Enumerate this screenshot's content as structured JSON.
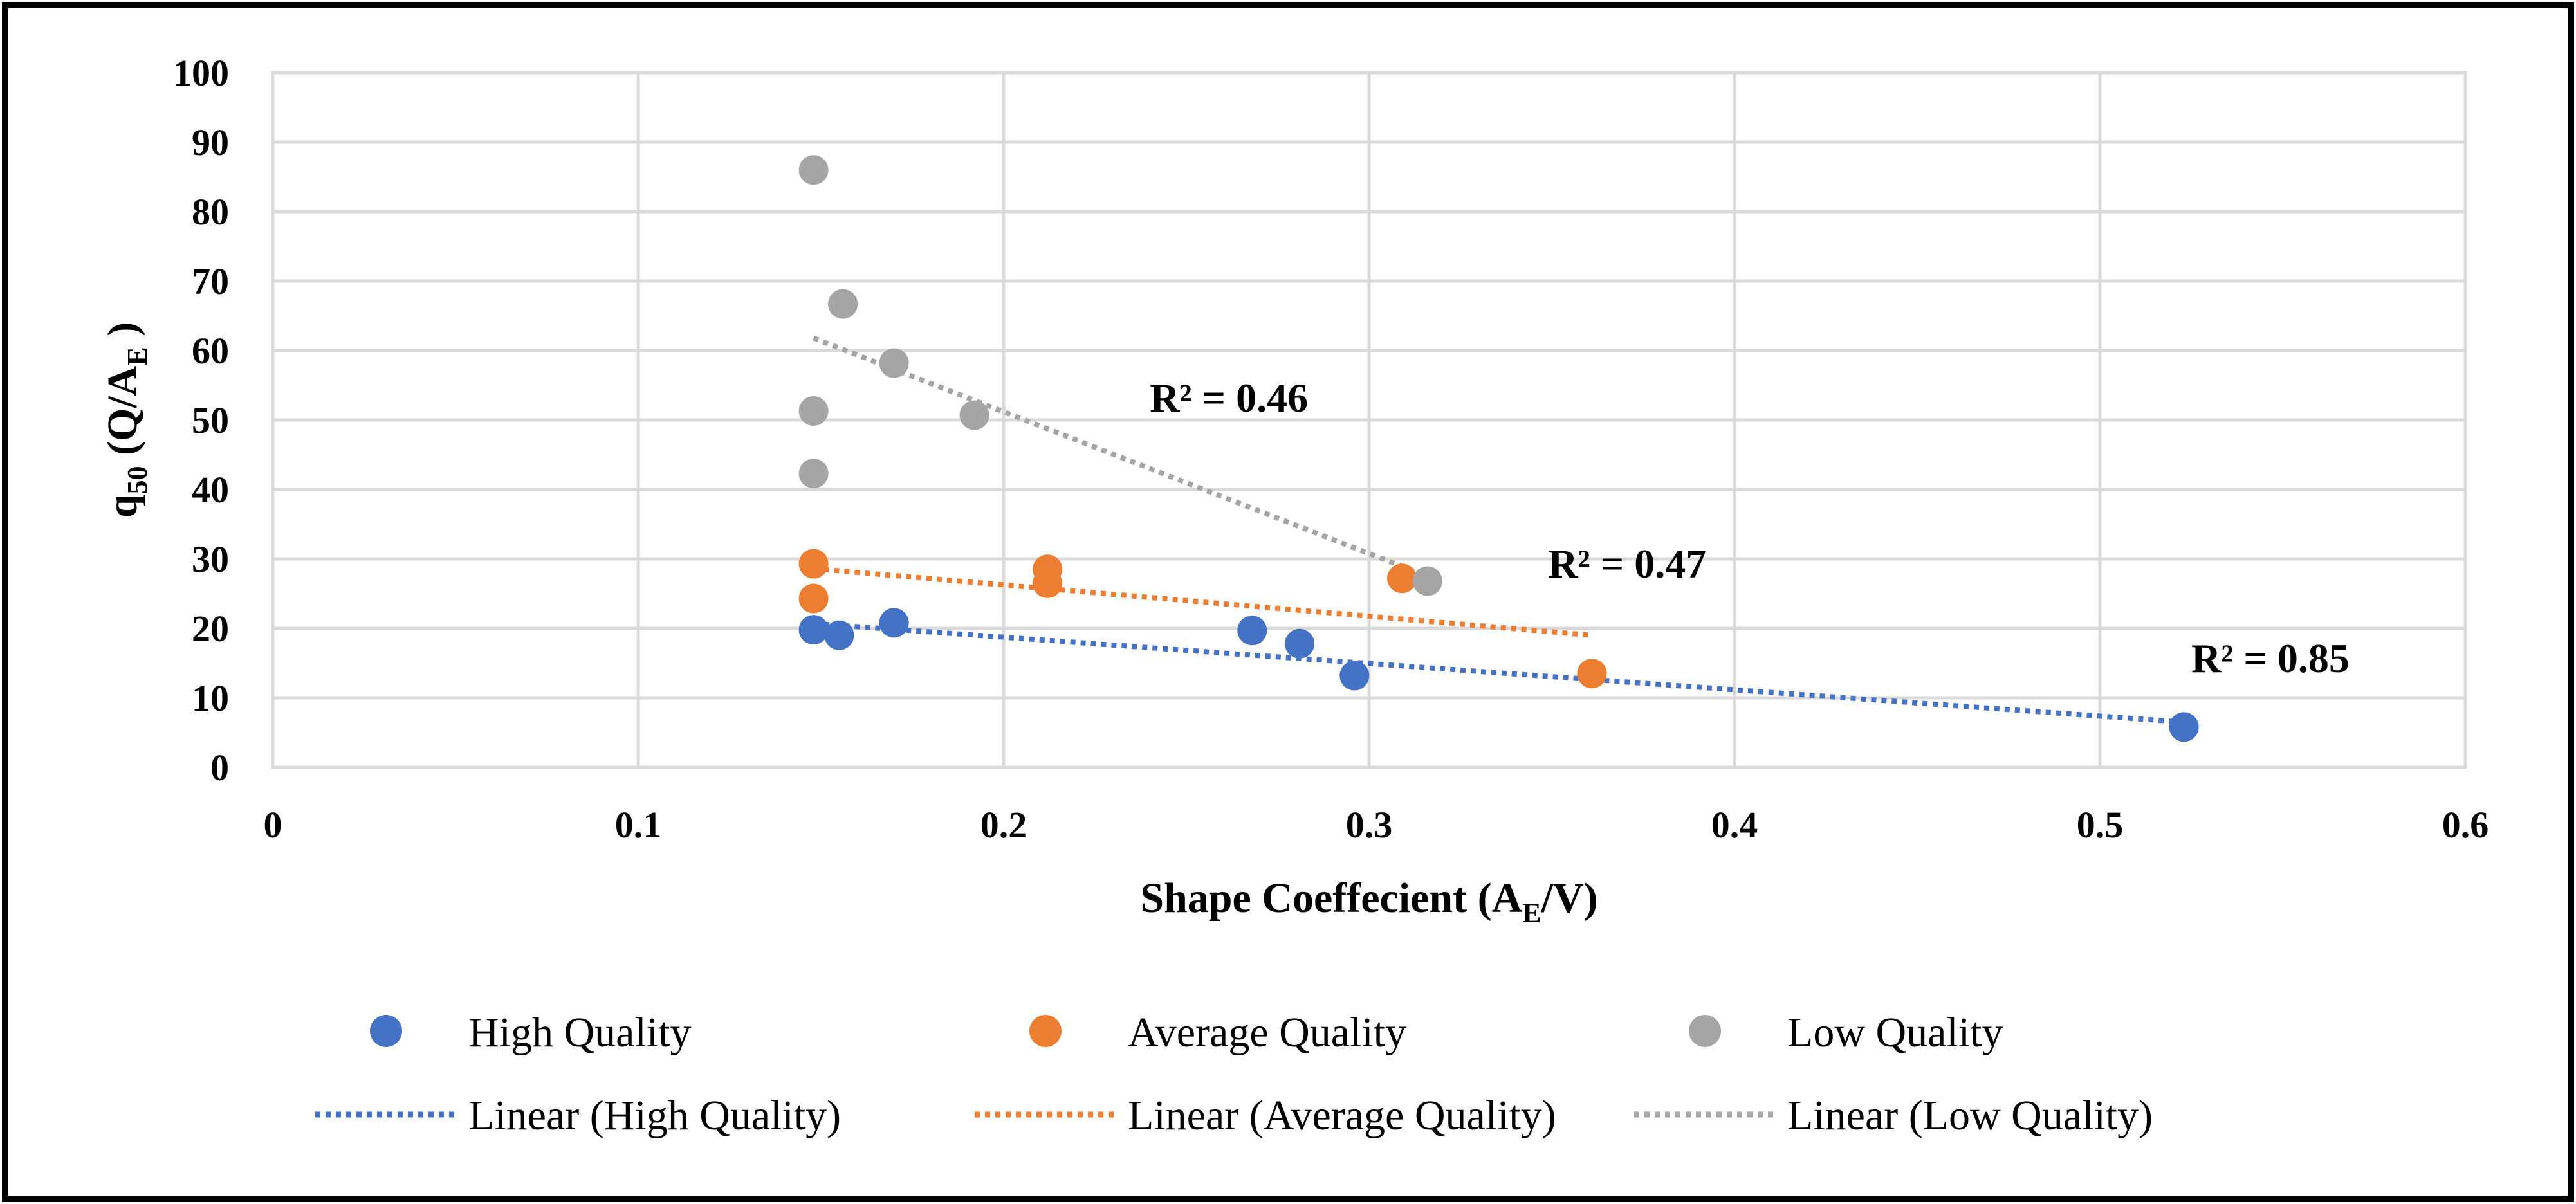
{
  "chart_data": {
    "type": "scatter",
    "xlabel": {
      "main": "Shape Coeffecient (A",
      "sub": "E",
      "tail": "/V)"
    },
    "ylabel": {
      "main": "q",
      "sub1": "50",
      "mid": " (Q/A",
      "sub2": "E",
      "tail": " )"
    },
    "xlim": [
      0,
      0.6
    ],
    "ylim": [
      0,
      100
    ],
    "x_ticks": [
      0,
      0.1,
      0.2,
      0.3,
      0.4,
      0.5,
      0.6
    ],
    "x_tick_labels": [
      "0",
      "0.1",
      "0.2",
      "0.3",
      "0.4",
      "0.5",
      "0.6"
    ],
    "y_ticks": [
      0,
      10,
      20,
      30,
      40,
      50,
      60,
      70,
      80,
      90,
      100
    ],
    "y_tick_labels": [
      "0",
      "10",
      "20",
      "30",
      "40",
      "50",
      "60",
      "70",
      "80",
      "90",
      "100"
    ],
    "grid": true,
    "legend_position": "bottom",
    "series": [
      {
        "name": "High Quality",
        "color": "#4472C4",
        "points": [
          [
            0.148,
            19.8
          ],
          [
            0.155,
            19.0
          ],
          [
            0.17,
            20.8
          ],
          [
            0.268,
            19.7
          ],
          [
            0.281,
            17.8
          ],
          [
            0.296,
            13.2
          ],
          [
            0.523,
            5.8
          ]
        ],
        "trend_name": "Linear (High Quality)",
        "trend": {
          "x": [
            0.148,
            0.523
          ],
          "y": [
            20.7,
            6.5
          ]
        },
        "r2_label": "R² = 0.85",
        "r2_at": [
          0.525,
          13.7
        ]
      },
      {
        "name": "Average Quality",
        "color": "#ED7D31",
        "points": [
          [
            0.148,
            29.3
          ],
          [
            0.148,
            24.3
          ],
          [
            0.212,
            28.5
          ],
          [
            0.212,
            26.5
          ],
          [
            0.309,
            27.2
          ],
          [
            0.361,
            13.5
          ]
        ],
        "trend_name": "Linear (Average Quality)",
        "trend": {
          "x": [
            0.148,
            0.361
          ],
          "y": [
            28.6,
            19.0
          ]
        },
        "r2_label": "R² = 0.47",
        "r2_at": [
          0.349,
          27.3
        ]
      },
      {
        "name": "Low Quality",
        "color": "#A5A5A5",
        "points": [
          [
            0.148,
            86.0
          ],
          [
            0.156,
            66.7
          ],
          [
            0.17,
            58.2
          ],
          [
            0.192,
            50.7
          ],
          [
            0.148,
            51.3
          ],
          [
            0.148,
            42.3
          ],
          [
            0.316,
            26.8
          ]
        ],
        "trend_name": "Linear (Low Quality)",
        "trend": {
          "x": [
            0.148,
            0.316
          ],
          "y": [
            61.8,
            27.5
          ]
        },
        "r2_label": "R² = 0.46",
        "r2_at": [
          0.24,
          51.2
        ]
      }
    ]
  }
}
